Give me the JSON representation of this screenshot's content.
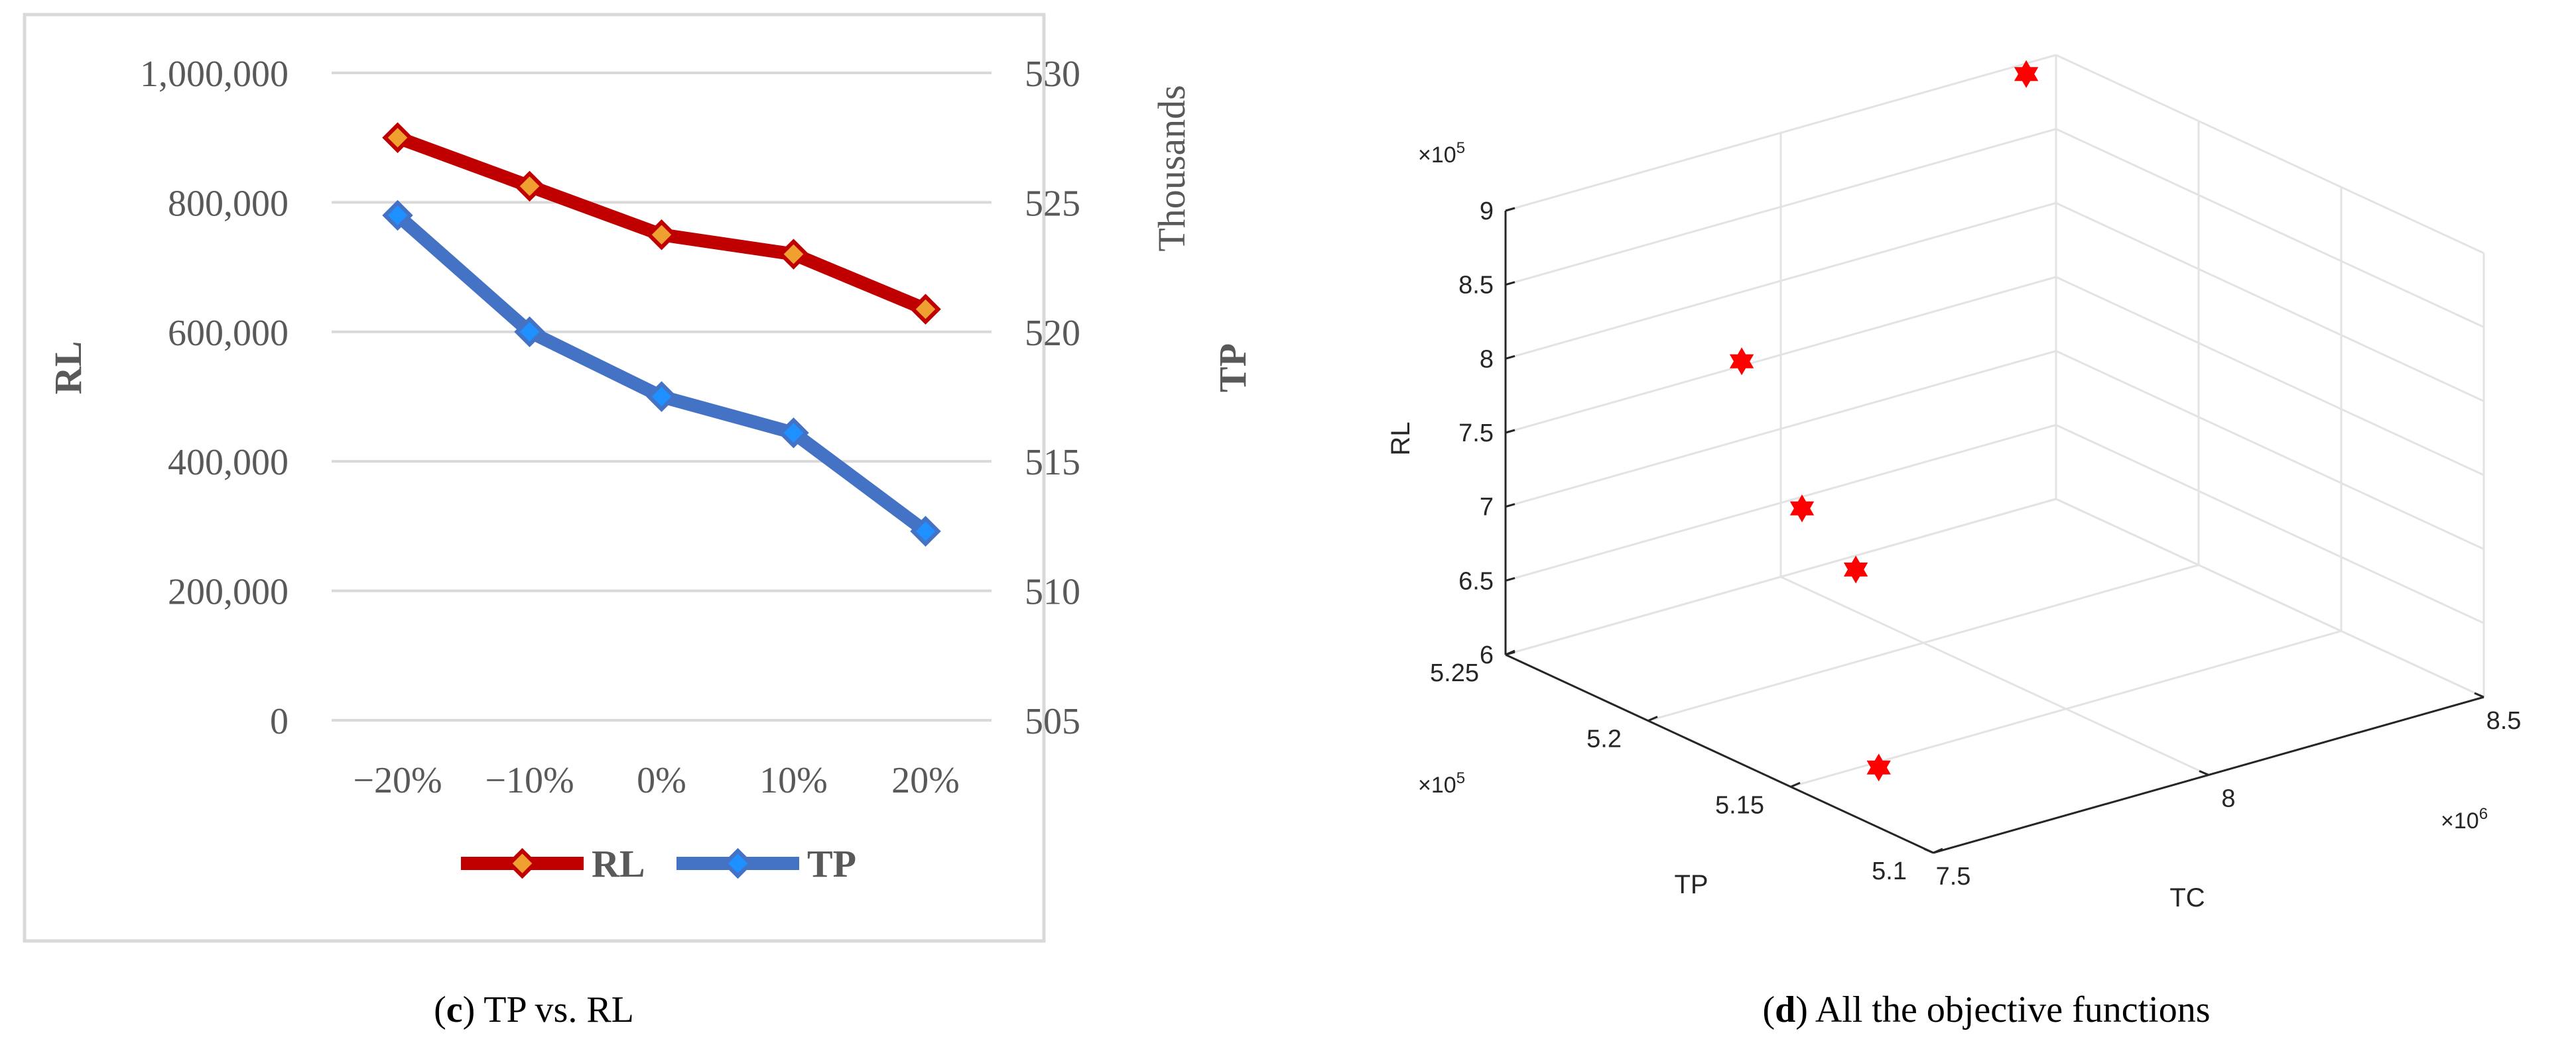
{
  "chart_data": [
    {
      "type": "line",
      "panel_label": "c",
      "caption_rest": " TP vs. RL",
      "categories": [
        "−20%",
        "−10%",
        "0%",
        "10%",
        "20%"
      ],
      "series": [
        {
          "name": "RL",
          "axis": "left",
          "color": "#c00000",
          "marker_color": "#f0a030",
          "values": [
            900000,
            825000,
            750000,
            720000,
            635000
          ]
        },
        {
          "name": "TP",
          "axis": "right",
          "color": "#4472c4",
          "marker_color": "#1e90ff",
          "values": [
            524.5,
            520.0,
            517.5,
            516.1,
            512.3
          ]
        }
      ],
      "ylabel": "RL",
      "ylim": [
        0,
        1000000
      ],
      "yticks": [
        0,
        200000,
        400000,
        600000,
        800000,
        1000000
      ],
      "ytick_labels": [
        "0",
        "200,000",
        "400,000",
        "600,000",
        "800,000",
        "1,000,000"
      ],
      "y2label": "TP",
      "y2unit": "Thousands",
      "y2lim": [
        505,
        530
      ],
      "y2ticks": [
        505,
        510,
        515,
        520,
        525,
        530
      ],
      "y2tick_labels": [
        "505",
        "510",
        "515",
        "520",
        "525",
        "530"
      ],
      "grid": true,
      "legend": "bottom"
    },
    {
      "type": "scatter",
      "subtype": "scatter3d",
      "panel_label": "d",
      "caption_rest": " All the objective functions",
      "xlabel": "TC",
      "ylabel": "TP",
      "zlabel": "RL",
      "x_multiplier": "×10",
      "x_exp": "6",
      "y_multiplier": "×10",
      "y_exp": "5",
      "z_multiplier": "×10",
      "z_exp": "5",
      "xlim": [
        7.5,
        8.5
      ],
      "xticks": [
        7.5,
        8,
        8.5
      ],
      "xtick_labels": [
        "7.5",
        "8",
        "8.5"
      ],
      "ylim": [
        5.1,
        5.25
      ],
      "yticks": [
        5.1,
        5.15,
        5.2,
        5.25
      ],
      "ytick_labels": [
        "5.1",
        "5.15",
        "5.2",
        "5.25"
      ],
      "zlim": [
        6,
        9
      ],
      "zticks": [
        6,
        6.5,
        7,
        7.5,
        8,
        8.5,
        9
      ],
      "ztick_labels": [
        "6",
        "6.5",
        "7",
        "7.5",
        "8",
        "8.5",
        "9"
      ],
      "marker": "hexagram",
      "marker_color": "#ff0000",
      "points": [
        {
          "x": 8.42,
          "y": 5.245,
          "z": 9.0
        },
        {
          "x": 7.67,
          "y": 5.2,
          "z": 8.25
        },
        {
          "x": 7.65,
          "y": 5.175,
          "z": 7.5
        },
        {
          "x": 7.67,
          "y": 5.16,
          "z": 7.2
        },
        {
          "x": 7.52,
          "y": 5.123,
          "z": 6.35
        }
      ],
      "grid": true
    }
  ]
}
